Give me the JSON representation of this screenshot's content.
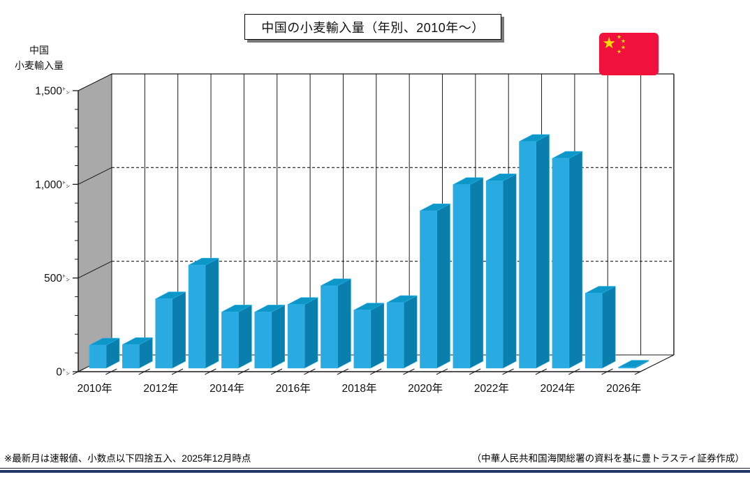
{
  "header": {
    "title": "中国の小麦輸入量（年別、2010年～）"
  },
  "y_axis": {
    "title_line1": "中国",
    "title_line2": "小麦輸入量"
  },
  "footnotes": {
    "left": "※最新月は速報値、小数点以下四捨五入、2025年12月時点",
    "right": "（中華人民共和国海関総署の資料を基に豊トラスティ証券作成）"
  },
  "flag": {
    "name": "china-flag",
    "red": "#F0123C",
    "yellow": "#FFDE00"
  },
  "chart_data": {
    "type": "bar",
    "style": "3d-column",
    "title": "中国の小麦輸入量（年別、2010年～）",
    "categories": [
      2010,
      2011,
      2012,
      2013,
      2014,
      2015,
      2016,
      2017,
      2018,
      2019,
      2020,
      2021,
      2022,
      2023,
      2024,
      2025,
      2026
    ],
    "values": [
      123,
      126,
      370,
      550,
      300,
      300,
      340,
      440,
      310,
      350,
      840,
      980,
      1000,
      1210,
      1120,
      400,
      5
    ],
    "x_tick_labels": [
      "2010年",
      "2012年",
      "2014年",
      "2016年",
      "2018年",
      "2020年",
      "2022年",
      "2024年",
      "2026年"
    ],
    "x_label_every": 2,
    "y_ticks": [
      {
        "value": 0,
        "label": "0"
      },
      {
        "value": 500,
        "label": "500"
      },
      {
        "value": 1000,
        "label": "1,000"
      },
      {
        "value": 1500,
        "label": "1,500"
      }
    ],
    "unit": "㌧",
    "ylim": [
      0,
      1500
    ],
    "minor_tick_step": 100,
    "dashed_gridlines": [
      500,
      1000
    ],
    "grid": "on",
    "legend": "none",
    "colors": {
      "bar_front": "#29ABE2",
      "bar_top": "#0D96C8",
      "bar_side": "#0A7EAD",
      "bar_edge": "#33B1E6",
      "side_wall": "#A9A9A9",
      "grid_line": "#1A1A1A",
      "axis_line": "#000000"
    }
  }
}
